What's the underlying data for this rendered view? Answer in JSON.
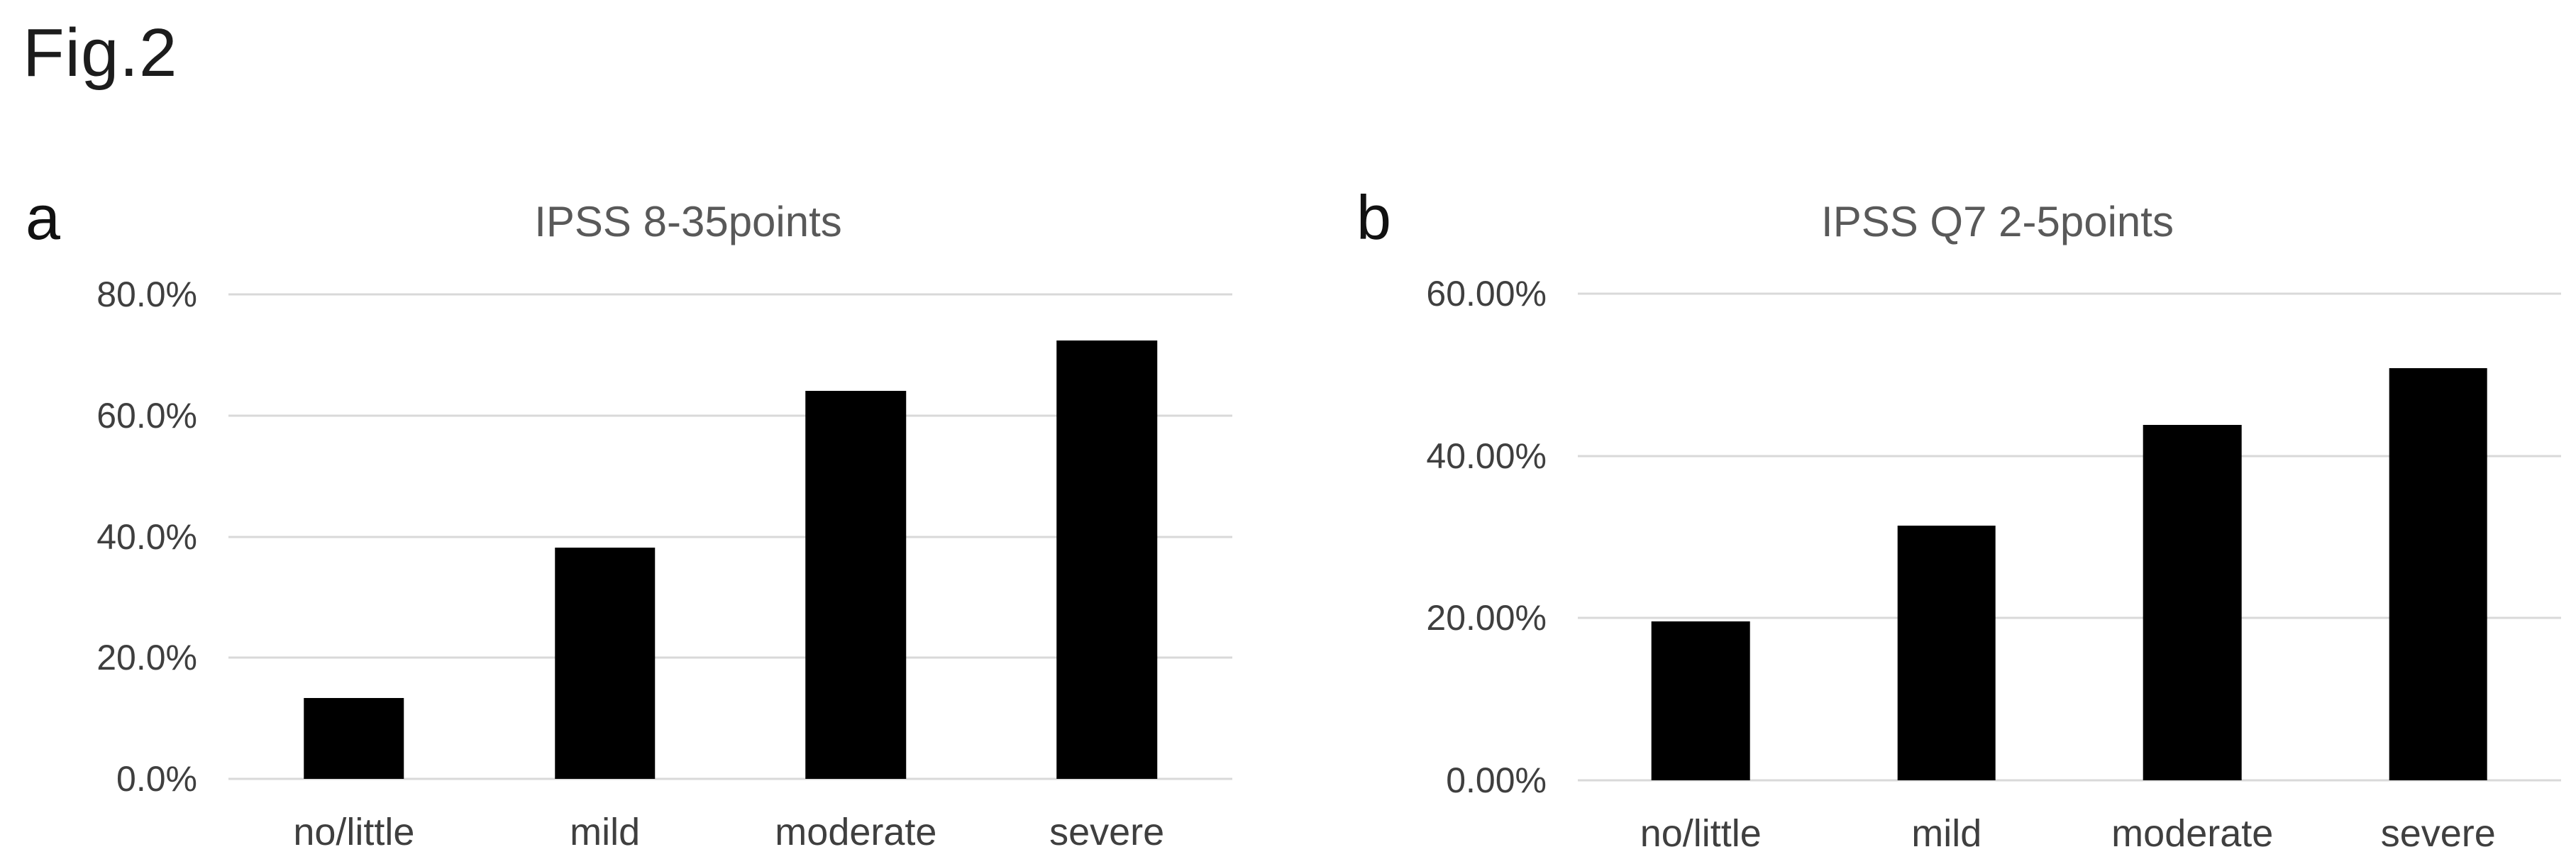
{
  "figure": {
    "label": "Fig.2"
  },
  "panels": [
    {
      "letter": "a"
    },
    {
      "letter": "b"
    }
  ],
  "chart_data": [
    {
      "type": "bar",
      "title": "IPSS 8-35points",
      "categories": [
        "no/little",
        "mild",
        "moderate",
        "severe"
      ],
      "values": [
        13.3,
        38.2,
        64.1,
        72.4
      ],
      "unit": "%",
      "ylim": [
        0,
        80
      ],
      "yticks": [
        {
          "value": 80,
          "label": "80.0%"
        },
        {
          "value": 60,
          "label": "60.0%"
        },
        {
          "value": 40,
          "label": "40.0%"
        },
        {
          "value": 20,
          "label": "20.0%"
        },
        {
          "value": 0,
          "label": "0.0%"
        }
      ],
      "grid": true,
      "legend": "none",
      "bar_color": "#000000"
    },
    {
      "type": "bar",
      "title": "IPSS Q7 2-5points",
      "categories": [
        "no/little",
        "mild",
        "moderate",
        "severe"
      ],
      "values": [
        19.6,
        31.4,
        43.8,
        50.8
      ],
      "unit": "%",
      "ylim": [
        0,
        60
      ],
      "yticks": [
        {
          "value": 60,
          "label": "60.00%"
        },
        {
          "value": 40,
          "label": "40.00%"
        },
        {
          "value": 20,
          "label": "20.00%"
        },
        {
          "value": 0,
          "label": "0.00%"
        }
      ],
      "grid": true,
      "legend": "none",
      "bar_color": "#000000"
    }
  ],
  "colors": {
    "bar": "#000000",
    "gridline": "#d9d9d9",
    "title_text": "#595959",
    "axis_text": "#3f3f3f",
    "background": "#ffffff"
  }
}
